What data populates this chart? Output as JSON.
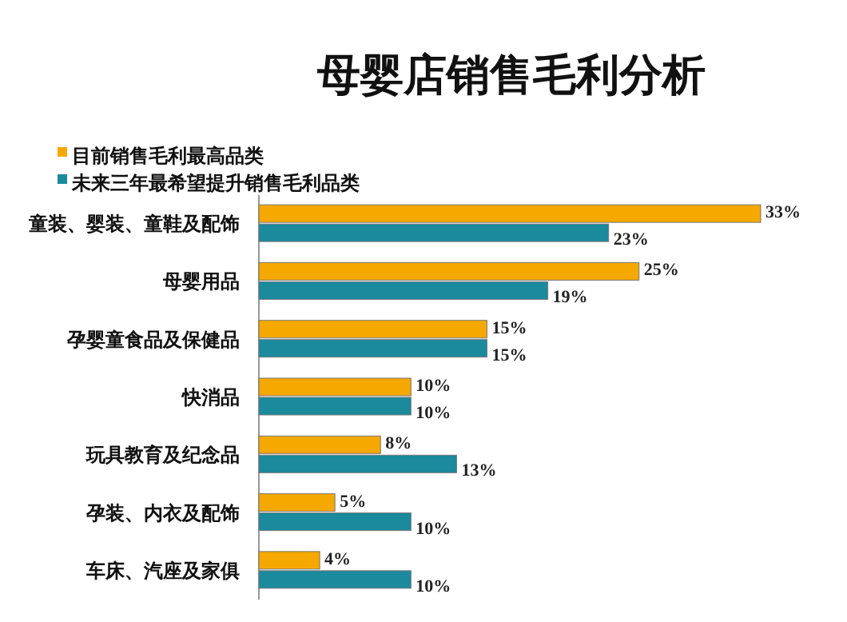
{
  "chart_data": {
    "type": "bar",
    "orientation": "horizontal",
    "title": "母婴店销售毛利分析",
    "categories": [
      "童装、婴装、童鞋及配饰",
      "母婴用品",
      "孕婴童食品及保健品",
      "快消品",
      "玩具教育及纪念品",
      "孕装、内衣及配饰",
      "车床、汽座及家俱"
    ],
    "series": [
      {
        "name": "目前销售毛利最高品类",
        "color": "#f5a800",
        "values": [
          33,
          25,
          15,
          10,
          8,
          5,
          4
        ],
        "value_labels": [
          "33%",
          "25%",
          "15%",
          "10%",
          "8%",
          "5%",
          "4%"
        ]
      },
      {
        "name": "未来三年最希望提升销售毛利品类",
        "color": "#1a8a9c",
        "values": [
          23,
          19,
          15,
          10,
          13,
          10,
          10
        ],
        "value_labels": [
          "23%",
          "19%",
          "15%",
          "10%",
          "13%",
          "10%",
          "10%"
        ]
      }
    ],
    "legend": "top left"
  }
}
